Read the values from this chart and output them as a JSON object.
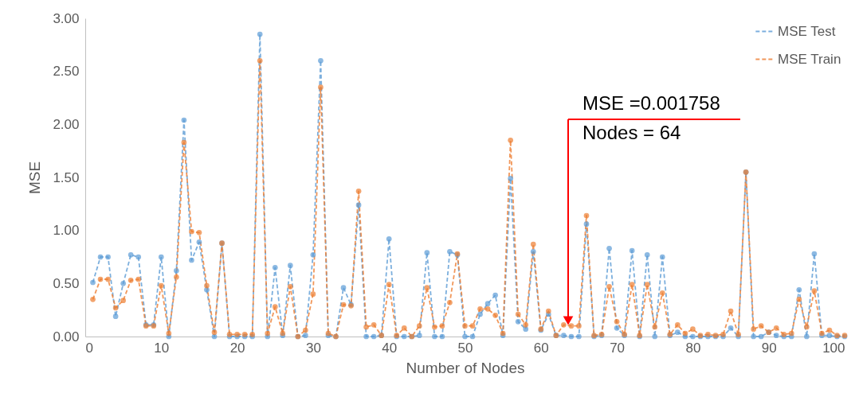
{
  "chart_data": {
    "type": "line",
    "xlabel": "Number of Nodes",
    "ylabel": "MSE",
    "x": [
      1,
      2,
      3,
      4,
      5,
      6,
      7,
      8,
      9,
      10,
      11,
      12,
      13,
      14,
      15,
      16,
      17,
      18,
      19,
      20,
      21,
      22,
      23,
      24,
      25,
      26,
      27,
      28,
      29,
      30,
      31,
      32,
      33,
      34,
      35,
      36,
      37,
      38,
      39,
      40,
      41,
      42,
      43,
      44,
      45,
      46,
      47,
      48,
      49,
      50,
      51,
      52,
      53,
      54,
      55,
      56,
      57,
      58,
      59,
      60,
      61,
      62,
      63,
      64,
      65,
      66,
      67,
      68,
      69,
      70,
      71,
      72,
      73,
      74,
      75,
      76,
      77,
      78,
      79,
      80,
      81,
      82,
      83,
      84,
      85,
      86,
      87,
      88,
      89,
      90,
      91,
      92,
      93,
      94,
      95,
      96,
      97,
      98,
      99,
      100
    ],
    "series": [
      {
        "name": "MSE Test",
        "color": "#5b9bd5",
        "values": [
          0.51,
          0.75,
          0.75,
          0.19,
          0.5,
          0.77,
          0.75,
          0.11,
          0.11,
          0.75,
          0.0,
          0.62,
          2.04,
          0.72,
          0.89,
          0.44,
          0.0,
          0.88,
          0.0,
          0.0,
          0.0,
          0.0,
          2.85,
          0.0,
          0.65,
          0.01,
          0.67,
          0.0,
          0.01,
          0.77,
          2.6,
          0.01,
          0.0,
          0.46,
          0.3,
          1.24,
          0.0,
          0.0,
          0.01,
          0.92,
          0.0,
          0.0,
          0.0,
          0.01,
          0.79,
          0.0,
          0.0,
          0.8,
          0.77,
          0.0,
          0.0,
          0.21,
          0.31,
          0.39,
          0.01,
          1.49,
          0.14,
          0.07,
          0.8,
          0.06,
          0.21,
          0.01,
          0.01,
          0.0,
          0.0,
          1.06,
          0.0,
          0.01,
          0.83,
          0.08,
          0.01,
          0.81,
          0.0,
          0.77,
          0.0,
          0.75,
          0.01,
          0.04,
          0.0,
          0.0,
          0.0,
          0.0,
          0.0,
          0.0,
          0.08,
          0.0,
          1.55,
          0.0,
          0.0,
          0.04,
          0.01,
          0.0,
          0.0,
          0.44,
          0.0,
          0.78,
          0.01,
          0.01,
          0.0,
          0.0
        ]
      },
      {
        "name": "MSE Train",
        "color": "#ed7d31",
        "values": [
          0.35,
          0.54,
          0.54,
          0.27,
          0.34,
          0.53,
          0.54,
          0.1,
          0.1,
          0.48,
          0.03,
          0.56,
          1.83,
          0.99,
          0.98,
          0.48,
          0.04,
          0.88,
          0.02,
          0.02,
          0.02,
          0.02,
          2.6,
          0.03,
          0.28,
          0.03,
          0.47,
          0.0,
          0.06,
          0.4,
          2.35,
          0.03,
          0.0,
          0.3,
          0.29,
          1.37,
          0.09,
          0.11,
          0.01,
          0.49,
          0.01,
          0.08,
          0.0,
          0.1,
          0.46,
          0.09,
          0.1,
          0.32,
          0.78,
          0.1,
          0.1,
          0.26,
          0.26,
          0.2,
          0.03,
          1.85,
          0.21,
          0.11,
          0.87,
          0.07,
          0.24,
          0.01,
          0.11,
          0.1,
          0.1,
          1.14,
          0.01,
          0.02,
          0.47,
          0.14,
          0.02,
          0.49,
          0.01,
          0.49,
          0.09,
          0.41,
          0.02,
          0.11,
          0.03,
          0.07,
          0.01,
          0.02,
          0.01,
          0.02,
          0.24,
          0.02,
          1.55,
          0.07,
          0.1,
          0.04,
          0.08,
          0.02,
          0.03,
          0.35,
          0.09,
          0.43,
          0.03,
          0.06,
          0.01,
          0.01
        ]
      }
    ],
    "xlim": [
      0,
      100
    ],
    "xticks": [
      0,
      10,
      20,
      30,
      40,
      50,
      60,
      70,
      80,
      90,
      100
    ],
    "ylim": [
      0,
      3
    ],
    "yticks": [
      {
        "value": 0,
        "label": "0.00"
      },
      {
        "value": 0.5,
        "label": "0.50"
      },
      {
        "value": 1,
        "label": "1.00"
      },
      {
        "value": 1.5,
        "label": "1.50"
      },
      {
        "value": 2,
        "label": "2.00"
      },
      {
        "value": 2.5,
        "label": "2.50"
      },
      {
        "value": 3,
        "label": "3.00"
      }
    ],
    "legend": "top right",
    "marker": "circle",
    "line_style": "dashed",
    "annotations": [
      "MSE =0.001758",
      "Nodes = 64"
    ]
  }
}
